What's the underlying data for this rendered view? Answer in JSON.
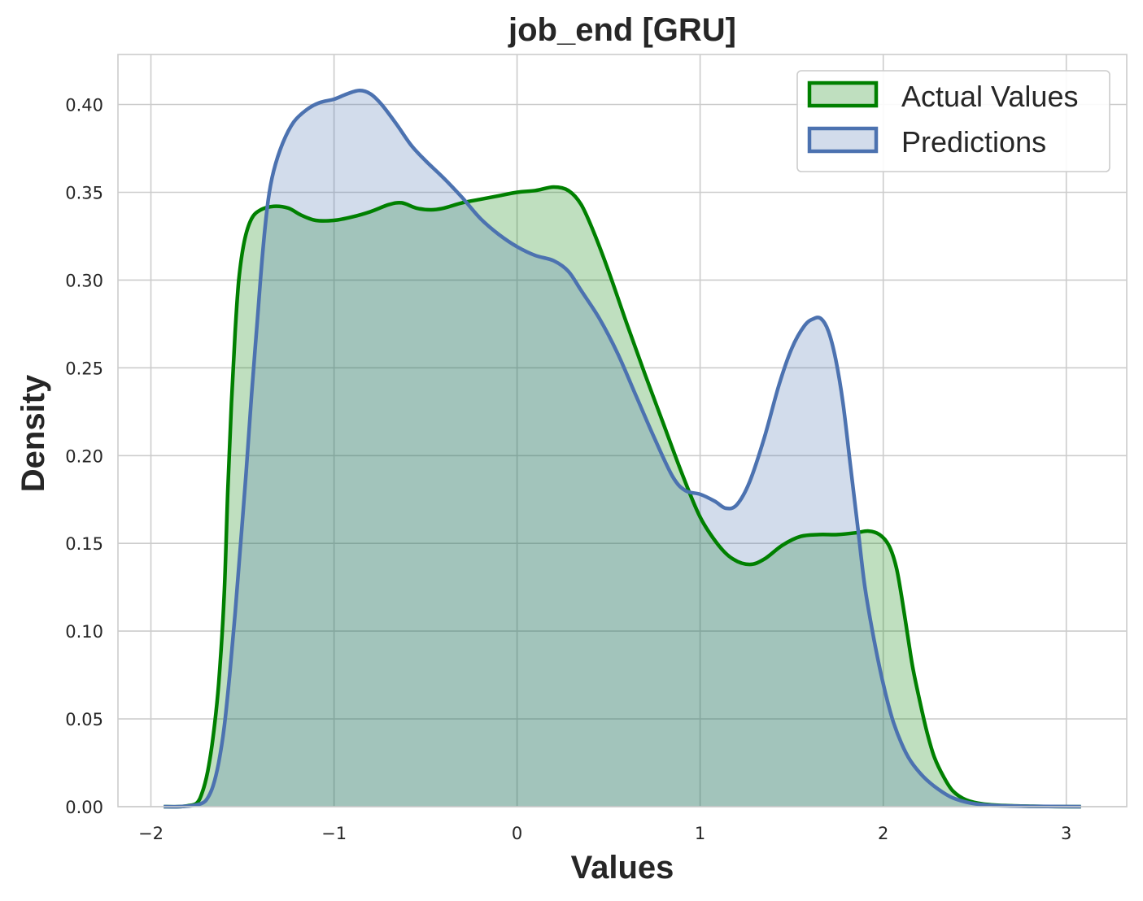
{
  "chart_data": {
    "type": "area",
    "title": "job_end [GRU]",
    "xlabel": "Values",
    "ylabel": "Density",
    "xlim": [
      -2.18,
      3.33
    ],
    "ylim": [
      0,
      0.4285
    ],
    "xticks": [
      -2,
      -1,
      0,
      1,
      2,
      3
    ],
    "xtick_labels": [
      "−2",
      "−1",
      "0",
      "1",
      "2",
      "3"
    ],
    "yticks": [
      0,
      0.05,
      0.1,
      0.15,
      0.2,
      0.25,
      0.3,
      0.35,
      0.4
    ],
    "ytick_labels": [
      "0.00",
      "0.05",
      "0.10",
      "0.15",
      "0.20",
      "0.25",
      "0.30",
      "0.35",
      "0.40"
    ],
    "grid": true,
    "legend_position": "top-right",
    "series": [
      {
        "name": "Actual Values",
        "line_color": "#008000",
        "fill_color": "#008000",
        "points": [
          [
            -1.93,
            0
          ],
          [
            -1.85,
            0.0
          ],
          [
            -1.8,
            0.0005
          ],
          [
            -1.75,
            0.002
          ],
          [
            -1.72,
            0.008
          ],
          [
            -1.69,
            0.02
          ],
          [
            -1.66,
            0.04
          ],
          [
            -1.63,
            0.07
          ],
          [
            -1.6,
            0.12
          ],
          [
            -1.58,
            0.18
          ],
          [
            -1.56,
            0.23
          ],
          [
            -1.54,
            0.27
          ],
          [
            -1.52,
            0.3
          ],
          [
            -1.49,
            0.322
          ],
          [
            -1.45,
            0.335
          ],
          [
            -1.4,
            0.34
          ],
          [
            -1.33,
            0.342
          ],
          [
            -1.25,
            0.341
          ],
          [
            -1.18,
            0.337
          ],
          [
            -1.1,
            0.334
          ],
          [
            -1.0,
            0.334
          ],
          [
            -0.9,
            0.336
          ],
          [
            -0.8,
            0.339
          ],
          [
            -0.7,
            0.343
          ],
          [
            -0.63,
            0.344
          ],
          [
            -0.55,
            0.341
          ],
          [
            -0.47,
            0.34
          ],
          [
            -0.4,
            0.341
          ],
          [
            -0.3,
            0.344
          ],
          [
            -0.2,
            0.346
          ],
          [
            -0.1,
            0.348
          ],
          [
            0.0,
            0.35
          ],
          [
            0.1,
            0.351
          ],
          [
            0.2,
            0.353
          ],
          [
            0.28,
            0.351
          ],
          [
            0.35,
            0.343
          ],
          [
            0.42,
            0.327
          ],
          [
            0.5,
            0.305
          ],
          [
            0.6,
            0.275
          ],
          [
            0.7,
            0.246
          ],
          [
            0.8,
            0.218
          ],
          [
            0.9,
            0.19
          ],
          [
            1.0,
            0.165
          ],
          [
            1.1,
            0.149
          ],
          [
            1.18,
            0.141
          ],
          [
            1.27,
            0.138
          ],
          [
            1.35,
            0.141
          ],
          [
            1.45,
            0.149
          ],
          [
            1.55,
            0.154
          ],
          [
            1.65,
            0.155
          ],
          [
            1.75,
            0.155
          ],
          [
            1.85,
            0.156
          ],
          [
            1.92,
            0.157
          ],
          [
            1.98,
            0.155
          ],
          [
            2.03,
            0.149
          ],
          [
            2.07,
            0.137
          ],
          [
            2.1,
            0.12
          ],
          [
            2.13,
            0.1
          ],
          [
            2.16,
            0.08
          ],
          [
            2.2,
            0.06
          ],
          [
            2.24,
            0.042
          ],
          [
            2.28,
            0.028
          ],
          [
            2.33,
            0.017
          ],
          [
            2.38,
            0.009
          ],
          [
            2.45,
            0.004
          ],
          [
            2.55,
            0.0015
          ],
          [
            2.7,
            0.0005
          ],
          [
            2.9,
            0.0001
          ],
          [
            3.08,
            0
          ]
        ]
      },
      {
        "name": "Predictions",
        "line_color": "#4c72b0",
        "fill_color": "#4c72b0",
        "points": [
          [
            -1.93,
            0
          ],
          [
            -1.85,
            0.0
          ],
          [
            -1.78,
            0.0005
          ],
          [
            -1.72,
            0.002
          ],
          [
            -1.69,
            0.005
          ],
          [
            -1.66,
            0.012
          ],
          [
            -1.63,
            0.025
          ],
          [
            -1.6,
            0.045
          ],
          [
            -1.57,
            0.075
          ],
          [
            -1.54,
            0.11
          ],
          [
            -1.51,
            0.15
          ],
          [
            -1.48,
            0.19
          ],
          [
            -1.45,
            0.235
          ],
          [
            -1.42,
            0.275
          ],
          [
            -1.39,
            0.315
          ],
          [
            -1.36,
            0.345
          ],
          [
            -1.33,
            0.362
          ],
          [
            -1.28,
            0.378
          ],
          [
            -1.22,
            0.39
          ],
          [
            -1.15,
            0.397
          ],
          [
            -1.08,
            0.401
          ],
          [
            -1.0,
            0.403
          ],
          [
            -0.93,
            0.406
          ],
          [
            -0.86,
            0.408
          ],
          [
            -0.8,
            0.406
          ],
          [
            -0.74,
            0.4
          ],
          [
            -0.66,
            0.389
          ],
          [
            -0.58,
            0.377
          ],
          [
            -0.5,
            0.368
          ],
          [
            -0.4,
            0.358
          ],
          [
            -0.3,
            0.347
          ],
          [
            -0.2,
            0.335
          ],
          [
            -0.1,
            0.326
          ],
          [
            0.0,
            0.319
          ],
          [
            0.1,
            0.314
          ],
          [
            0.2,
            0.311
          ],
          [
            0.28,
            0.305
          ],
          [
            0.35,
            0.294
          ],
          [
            0.45,
            0.278
          ],
          [
            0.55,
            0.258
          ],
          [
            0.65,
            0.234
          ],
          [
            0.75,
            0.21
          ],
          [
            0.85,
            0.188
          ],
          [
            0.92,
            0.18
          ],
          [
            1.0,
            0.178
          ],
          [
            1.08,
            0.174
          ],
          [
            1.14,
            0.17
          ],
          [
            1.2,
            0.172
          ],
          [
            1.27,
            0.185
          ],
          [
            1.35,
            0.21
          ],
          [
            1.43,
            0.24
          ],
          [
            1.5,
            0.261
          ],
          [
            1.57,
            0.274
          ],
          [
            1.62,
            0.278
          ],
          [
            1.66,
            0.278
          ],
          [
            1.7,
            0.271
          ],
          [
            1.74,
            0.255
          ],
          [
            1.78,
            0.23
          ],
          [
            1.82,
            0.195
          ],
          [
            1.86,
            0.16
          ],
          [
            1.9,
            0.125
          ],
          [
            1.95,
            0.095
          ],
          [
            2.0,
            0.07
          ],
          [
            2.05,
            0.05
          ],
          [
            2.1,
            0.036
          ],
          [
            2.15,
            0.026
          ],
          [
            2.22,
            0.017
          ],
          [
            2.3,
            0.01
          ],
          [
            2.38,
            0.005
          ],
          [
            2.48,
            0.002
          ],
          [
            2.6,
            0.0007
          ],
          [
            2.8,
            0.0002
          ],
          [
            3.08,
            0
          ]
        ]
      }
    ]
  }
}
